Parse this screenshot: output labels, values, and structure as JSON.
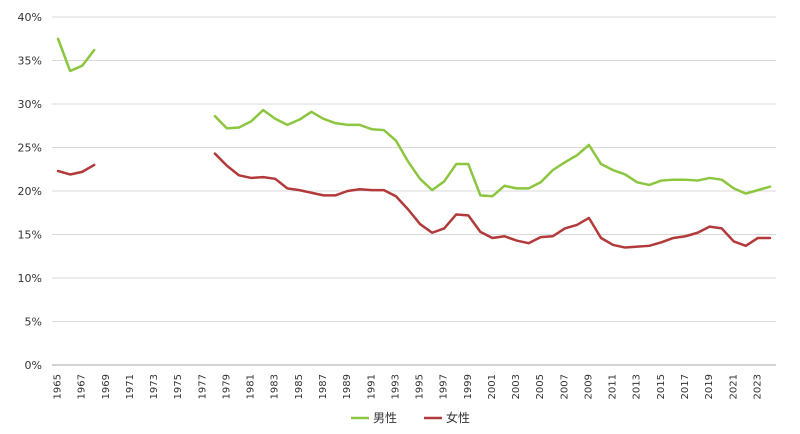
{
  "chart_data": {
    "type": "line",
    "title": "",
    "xlabel": "",
    "ylabel": "",
    "ylim": [
      0,
      40
    ],
    "y_ticks": [
      "0%",
      "5%",
      "10%",
      "15%",
      "20%",
      "25%",
      "30%",
      "35%",
      "40%"
    ],
    "y_tick_values": [
      0,
      5,
      10,
      15,
      20,
      25,
      30,
      35,
      40
    ],
    "x_range": [
      1965,
      2024
    ],
    "x_tick_labels": [
      "1965",
      "1967",
      "1969",
      "1971",
      "1973",
      "1975",
      "1977",
      "1979",
      "1981",
      "1983",
      "1985",
      "1987",
      "1989",
      "1991",
      "1993",
      "1995",
      "1997",
      "1999",
      "2001",
      "2003",
      "2005",
      "2007",
      "2009",
      "2011",
      "2013",
      "2015",
      "2017",
      "2019",
      "2021",
      "2023"
    ],
    "grid": true,
    "legend_position": "bottom",
    "years": [
      1965,
      1966,
      1967,
      1968,
      1969,
      1970,
      1971,
      1972,
      1973,
      1974,
      1975,
      1976,
      1977,
      1978,
      1979,
      1980,
      1981,
      1982,
      1983,
      1984,
      1985,
      1986,
      1987,
      1988,
      1989,
      1990,
      1991,
      1992,
      1993,
      1994,
      1995,
      1996,
      1997,
      1998,
      1999,
      2000,
      2001,
      2002,
      2003,
      2004,
      2005,
      2006,
      2007,
      2008,
      2009,
      2010,
      2011,
      2012,
      2013,
      2014,
      2015,
      2016,
      2017,
      2018,
      2019,
      2020,
      2021,
      2022,
      2023,
      2024
    ],
    "series": [
      {
        "name": "男性",
        "color": "#8cc63f",
        "values": [
          37.5,
          33.8,
          34.4,
          36.2,
          null,
          null,
          null,
          null,
          null,
          null,
          null,
          null,
          null,
          28.6,
          27.2,
          27.3,
          28.0,
          29.3,
          28.3,
          27.6,
          28.2,
          29.1,
          28.3,
          27.8,
          27.6,
          27.6,
          27.1,
          27.0,
          25.8,
          23.4,
          21.4,
          20.1,
          21.1,
          23.1,
          23.1,
          19.5,
          19.4,
          20.6,
          20.3,
          20.3,
          21.0,
          22.4,
          23.3,
          24.1,
          25.3,
          23.1,
          22.4,
          21.9,
          21.0,
          20.7,
          21.2,
          21.3,
          21.3,
          21.2,
          21.5,
          21.3,
          20.3,
          19.7,
          20.1,
          20.5
        ]
      },
      {
        "name": "女性",
        "color": "#b23a3a",
        "values": [
          22.3,
          21.9,
          22.2,
          23.0,
          null,
          null,
          null,
          null,
          null,
          null,
          null,
          null,
          null,
          24.3,
          22.9,
          21.8,
          21.5,
          21.6,
          21.4,
          20.3,
          20.1,
          19.8,
          19.5,
          19.5,
          20.0,
          20.2,
          20.1,
          20.1,
          19.4,
          17.9,
          16.2,
          15.2,
          15.7,
          17.3,
          17.2,
          15.3,
          14.6,
          14.8,
          14.3,
          14.0,
          14.7,
          14.8,
          15.7,
          16.1,
          16.9,
          14.6,
          13.8,
          13.5,
          13.6,
          13.7,
          14.1,
          14.6,
          14.8,
          15.2,
          15.9,
          15.7,
          14.2,
          13.7,
          14.6,
          14.6
        ]
      }
    ]
  }
}
